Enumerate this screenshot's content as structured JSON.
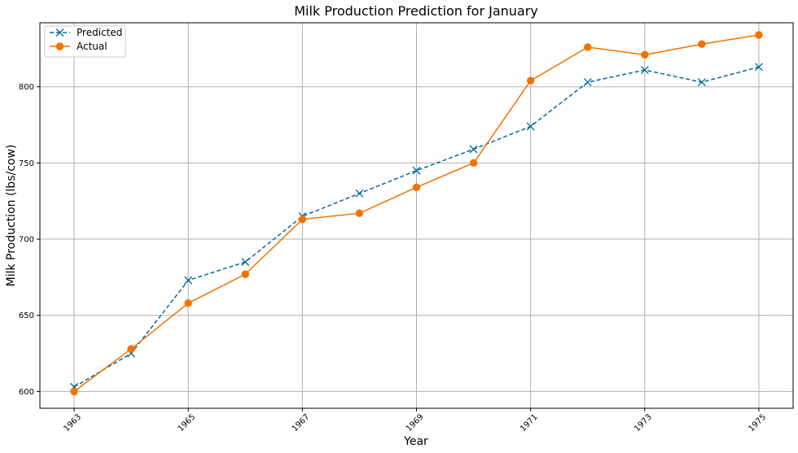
{
  "chart_data": {
    "type": "line",
    "title": "Milk Production Prediction for January",
    "xlabel": "Year",
    "ylabel": "Milk Production (lbs/cow)",
    "x": [
      1963,
      1964,
      1965,
      1966,
      1967,
      1968,
      1969,
      1970,
      1971,
      1972,
      1973,
      1974,
      1975
    ],
    "xticks": [
      "1963",
      "1965",
      "1967",
      "1969",
      "1971",
      "1973",
      "1975"
    ],
    "yticks": [
      "600",
      "650",
      "700",
      "750",
      "800"
    ],
    "xlim": [
      1962.4,
      1975.6
    ],
    "ylim": [
      589,
      842
    ],
    "grid": true,
    "legend_position": "upper-left",
    "series": [
      {
        "name": "Predicted",
        "color": "#00689e",
        "linestyle": "dashed",
        "marker": "x",
        "values": [
          603,
          625,
          673,
          685,
          715,
          730,
          745,
          759,
          774,
          803,
          811,
          803,
          813
        ]
      },
      {
        "name": "Actual",
        "color": "#f07400",
        "linestyle": "solid",
        "marker": "circle",
        "values": [
          600,
          628,
          658,
          677,
          713,
          717,
          734,
          750,
          804,
          826,
          821,
          828,
          834
        ]
      }
    ]
  }
}
